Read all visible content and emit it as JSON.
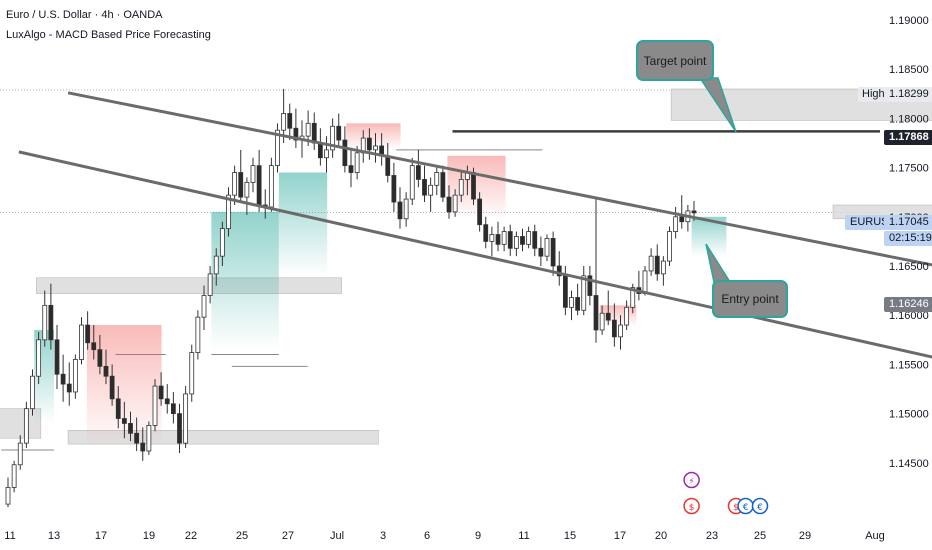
{
  "header": {
    "symbol_line": "Euro / U.S. Dollar · 4h · OANDA",
    "indicator_line": "LuxAlgo - MACD Based Price Forecasting"
  },
  "price_axis": {
    "ticks": [
      "1.19000",
      "1.18500",
      "1.18000",
      "1.17500",
      "1.17000",
      "1.16500",
      "1.16000",
      "1.15500",
      "1.15000",
      "1.14500"
    ],
    "high_label": "High",
    "high_value": "1.18299",
    "level_value": "1.17868",
    "symbol": "EURUSD",
    "last_price": "1.17045",
    "countdown": "02:15:19",
    "support_value": "1.16246"
  },
  "time_axis": {
    "ticks": [
      "11",
      "13",
      "17",
      "19",
      "22",
      "25",
      "27",
      "Jul",
      "3",
      "6",
      "9",
      "11",
      "15",
      "17",
      "20",
      "23",
      "25",
      "29",
      "Aug"
    ]
  },
  "annotations": {
    "target_label": "Target point",
    "entry_label": "Entry point"
  },
  "chart_data": {
    "type": "candlestick",
    "symbol": "EURUSD",
    "ylim": [
      1.1425,
      1.1925
    ],
    "levels": {
      "high": 1.18299,
      "resistance": 1.17868,
      "last": 1.17045,
      "support": 1.16246
    },
    "zones": [
      {
        "x": [
          14.2,
          28.0
        ],
        "y": [
          1.1798,
          1.18299
        ]
      },
      {
        "x": [
          17.4,
          20.6
        ],
        "y": [
          1.1698,
          1.1712
        ]
      },
      {
        "x": [
          1.3,
          7.9
        ],
        "y": [
          1.1469,
          1.1483
        ]
      },
      {
        "x": [
          0.6,
          7.1
        ],
        "y": [
          1.1622,
          1.1638
        ]
      },
      {
        "x": [
          -0.7,
          0.7
        ],
        "y": [
          1.1475,
          1.1505
        ]
      }
    ],
    "channel": {
      "upper": [
        [
          1.3,
          1.1826
        ],
        [
          19.7,
          1.1642
        ]
      ],
      "lower": [
        [
          0.2,
          1.1766
        ],
        [
          19.5,
          1.155
        ]
      ]
    },
    "projection": [
      [
        20.7,
        1.1706
      ],
      [
        21.1,
        1.168
      ],
      [
        21.6,
        1.1786
      ]
    ],
    "candles": [
      [
        1.1408,
        1.1435,
        1.1405,
        1.1425
      ],
      [
        1.1425,
        1.1452,
        1.142,
        1.1448
      ],
      [
        1.1448,
        1.1478,
        1.1443,
        1.147
      ],
      [
        1.147,
        1.1512,
        1.1465,
        1.1505
      ],
      [
        1.1505,
        1.1545,
        1.1498,
        1.1538
      ],
      [
        1.1538,
        1.1583,
        1.153,
        1.1575
      ],
      [
        1.1575,
        1.1625,
        1.1568,
        1.161
      ],
      [
        1.161,
        1.1632,
        1.1565,
        1.1575
      ],
      [
        1.1575,
        1.159,
        1.1525,
        1.154
      ],
      [
        1.154,
        1.156,
        1.1512,
        1.153
      ],
      [
        1.153,
        1.1552,
        1.1508,
        1.1522
      ],
      [
        1.1522,
        1.156,
        1.1515,
        1.1555
      ],
      [
        1.1555,
        1.1598,
        1.155,
        1.159
      ],
      [
        1.159,
        1.1604,
        1.1565,
        1.1572
      ],
      [
        1.1572,
        1.159,
        1.1555,
        1.1565
      ],
      [
        1.1565,
        1.158,
        1.154,
        1.1548
      ],
      [
        1.1548,
        1.1565,
        1.153,
        1.1538
      ],
      [
        1.1538,
        1.155,
        1.1508,
        1.1515
      ],
      [
        1.1515,
        1.1528,
        1.1485,
        1.1495
      ],
      [
        1.1495,
        1.1512,
        1.1475,
        1.149
      ],
      [
        1.149,
        1.1502,
        1.1472,
        1.148
      ],
      [
        1.148,
        1.1496,
        1.1462,
        1.147
      ],
      [
        1.147,
        1.1486,
        1.1452,
        1.1462
      ],
      [
        1.1462,
        1.1492,
        1.1458,
        1.1488
      ],
      [
        1.1488,
        1.1535,
        1.1482,
        1.1528
      ],
      [
        1.1528,
        1.1542,
        1.1508,
        1.1515
      ],
      [
        1.1515,
        1.153,
        1.15,
        1.151
      ],
      [
        1.151,
        1.1522,
        1.149,
        1.15
      ],
      [
        1.15,
        1.151,
        1.146,
        1.147
      ],
      [
        1.147,
        1.1528,
        1.1465,
        1.152
      ],
      [
        1.152,
        1.157,
        1.1512,
        1.1562
      ],
      [
        1.1562,
        1.1605,
        1.1555,
        1.1598
      ],
      [
        1.1598,
        1.163,
        1.1585,
        1.162
      ],
      [
        1.162,
        1.165,
        1.1612,
        1.1642
      ],
      [
        1.1642,
        1.1668,
        1.163,
        1.166
      ],
      [
        1.166,
        1.1695,
        1.165,
        1.1688
      ],
      [
        1.1688,
        1.173,
        1.168,
        1.1722
      ],
      [
        1.1722,
        1.1752,
        1.1712,
        1.1745
      ],
      [
        1.1745,
        1.1768,
        1.1715,
        1.172
      ],
      [
        1.172,
        1.174,
        1.1702,
        1.1735
      ],
      [
        1.1735,
        1.176,
        1.1725,
        1.1752
      ],
      [
        1.1752,
        1.1768,
        1.1705,
        1.1712
      ],
      [
        1.1712,
        1.1728,
        1.1698,
        1.171
      ],
      [
        1.171,
        1.176,
        1.1705,
        1.1752
      ],
      [
        1.1752,
        1.1795,
        1.1745,
        1.1788
      ],
      [
        1.1788,
        1.183,
        1.1775,
        1.1805
      ],
      [
        1.1805,
        1.1815,
        1.1778,
        1.179
      ],
      [
        1.179,
        1.181,
        1.177,
        1.1778
      ],
      [
        1.1778,
        1.1798,
        1.176,
        1.1782
      ],
      [
        1.1782,
        1.1808,
        1.1772,
        1.1795
      ],
      [
        1.1795,
        1.1806,
        1.1768,
        1.1775
      ],
      [
        1.1775,
        1.179,
        1.1752,
        1.176
      ],
      [
        1.176,
        1.1782,
        1.1745,
        1.1768
      ],
      [
        1.1768,
        1.18,
        1.176,
        1.1792
      ],
      [
        1.1792,
        1.1805,
        1.177,
        1.1778
      ],
      [
        1.1778,
        1.1792,
        1.1745,
        1.1752
      ],
      [
        1.1752,
        1.177,
        1.173,
        1.1745
      ],
      [
        1.1745,
        1.1772,
        1.1738,
        1.1765
      ],
      [
        1.1765,
        1.1788,
        1.1755,
        1.178
      ],
      [
        1.178,
        1.179,
        1.1758,
        1.1768
      ],
      [
        1.1768,
        1.1785,
        1.1755,
        1.1772
      ],
      [
        1.1772,
        1.1785,
        1.1752,
        1.1762
      ],
      [
        1.1762,
        1.1775,
        1.1735,
        1.1742
      ],
      [
        1.1742,
        1.1755,
        1.1705,
        1.1715
      ],
      [
        1.1715,
        1.173,
        1.1688,
        1.1698
      ],
      [
        1.1698,
        1.1725,
        1.169,
        1.1718
      ],
      [
        1.1718,
        1.176,
        1.1712,
        1.1752
      ],
      [
        1.1752,
        1.1768,
        1.173,
        1.1738
      ],
      [
        1.1738,
        1.1752,
        1.1715,
        1.1722
      ],
      [
        1.1722,
        1.174,
        1.1705,
        1.1732
      ],
      [
        1.1732,
        1.175,
        1.1722,
        1.1745
      ],
      [
        1.1745,
        1.1752,
        1.1715,
        1.172
      ],
      [
        1.172,
        1.1732,
        1.1698,
        1.1705
      ],
      [
        1.1705,
        1.1728,
        1.17,
        1.1722
      ],
      [
        1.1722,
        1.1745,
        1.1715,
        1.1738
      ],
      [
        1.1738,
        1.1752,
        1.1722,
        1.1745
      ],
      [
        1.1745,
        1.175,
        1.1712,
        1.1718
      ],
      [
        1.1718,
        1.1725,
        1.1685,
        1.1692
      ],
      [
        1.1692,
        1.17,
        1.1668,
        1.1675
      ],
      [
        1.1675,
        1.169,
        1.166,
        1.1682
      ],
      [
        1.1682,
        1.1695,
        1.1665,
        1.1672
      ],
      [
        1.1672,
        1.169,
        1.1665,
        1.1685
      ],
      [
        1.1685,
        1.1692,
        1.166,
        1.1668
      ],
      [
        1.1668,
        1.1685,
        1.166,
        1.168
      ],
      [
        1.168,
        1.1688,
        1.1665,
        1.1672
      ],
      [
        1.1672,
        1.169,
        1.1668,
        1.1685
      ],
      [
        1.1685,
        1.1692,
        1.166,
        1.1668
      ],
      [
        1.1668,
        1.168,
        1.165,
        1.166
      ],
      [
        1.166,
        1.1682,
        1.1655,
        1.1678
      ],
      [
        1.1678,
        1.1685,
        1.164,
        1.165
      ],
      [
        1.165,
        1.1665,
        1.163,
        1.164
      ],
      [
        1.164,
        1.165,
        1.16,
        1.1608
      ],
      [
        1.1608,
        1.1625,
        1.1595,
        1.1618
      ],
      [
        1.1618,
        1.1632,
        1.16,
        1.1605
      ],
      [
        1.1605,
        1.165,
        1.16,
        1.164
      ],
      [
        1.164,
        1.165,
        1.161,
        1.162
      ],
      [
        1.162,
        1.172,
        1.1572,
        1.1585
      ],
      [
        1.1585,
        1.161,
        1.158,
        1.1602
      ],
      [
        1.1602,
        1.1625,
        1.159,
        1.1595
      ],
      [
        1.1595,
        1.1612,
        1.1568,
        1.1578
      ],
      [
        1.1578,
        1.16,
        1.1565,
        1.159
      ],
      [
        1.159,
        1.1615,
        1.1585,
        1.1608
      ],
      [
        1.1608,
        1.1632,
        1.1602,
        1.1628
      ],
      [
        1.1628,
        1.1645,
        1.1615,
        1.1622
      ],
      [
        1.1622,
        1.165,
        1.162,
        1.1645
      ],
      [
        1.1645,
        1.1668,
        1.164,
        1.166
      ],
      [
        1.166,
        1.1672,
        1.1635,
        1.1642
      ],
      [
        1.1642,
        1.166,
        1.163,
        1.1655
      ],
      [
        1.1655,
        1.169,
        1.165,
        1.1685
      ],
      [
        1.1685,
        1.171,
        1.1678,
        1.17
      ],
      [
        1.17,
        1.1722,
        1.1688,
        1.1695
      ],
      [
        1.1695,
        1.1712,
        1.1685,
        1.1706
      ],
      [
        1.1706,
        1.1716,
        1.1696,
        1.1704
      ]
    ]
  }
}
